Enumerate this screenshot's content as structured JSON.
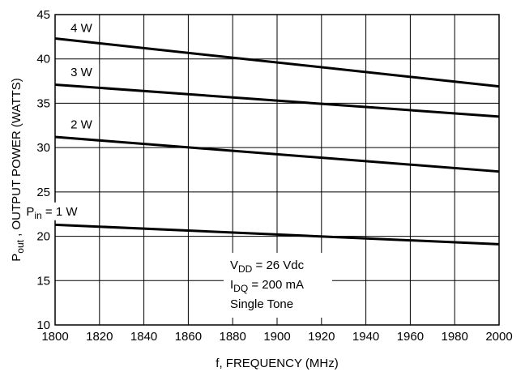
{
  "chart_data": {
    "type": "line",
    "xlabel": "f, FREQUENCY (MHz)",
    "ylabel": {
      "prefix": "P",
      "sub": "out",
      "suffix": " , OUTPUT POWER (WATTS)"
    },
    "xlim": [
      1800,
      2000
    ],
    "ylim": [
      10,
      45
    ],
    "x_ticks": [
      "1800",
      "1820",
      "1840",
      "1860",
      "1880",
      "1900",
      "1920",
      "1940",
      "1960",
      "1980",
      "2000"
    ],
    "y_ticks": [
      "10",
      "15",
      "20",
      "25",
      "30",
      "35",
      "40",
      "45"
    ],
    "grid": true,
    "series": [
      {
        "name": "4 W",
        "label": {
          "prefix": "",
          "sub": "",
          "suffix": "4 W"
        },
        "x": [
          1800,
          2000
        ],
        "y": [
          42.3,
          36.9
        ]
      },
      {
        "name": "3 W",
        "label": {
          "prefix": "",
          "sub": "",
          "suffix": "3 W"
        },
        "x": [
          1800,
          2000
        ],
        "y": [
          37.1,
          33.5
        ]
      },
      {
        "name": "2 W",
        "label": {
          "prefix": "",
          "sub": "",
          "suffix": "2 W"
        },
        "x": [
          1800,
          2000
        ],
        "y": [
          31.2,
          27.3
        ]
      },
      {
        "name": "Pin = 1 W",
        "label": {
          "prefix": "P",
          "sub": "in",
          "suffix": " = 1 W"
        },
        "x": [
          1800,
          2000
        ],
        "y": [
          21.3,
          19.1
        ]
      }
    ],
    "annotations": [
      {
        "prefix": "V",
        "sub": "DD",
        "suffix": " = 26 Vdc"
      },
      {
        "prefix": "I",
        "sub": "DQ",
        "suffix": " = 200 mA"
      },
      {
        "prefix": "Single Tone",
        "sub": "",
        "suffix": ""
      }
    ]
  }
}
